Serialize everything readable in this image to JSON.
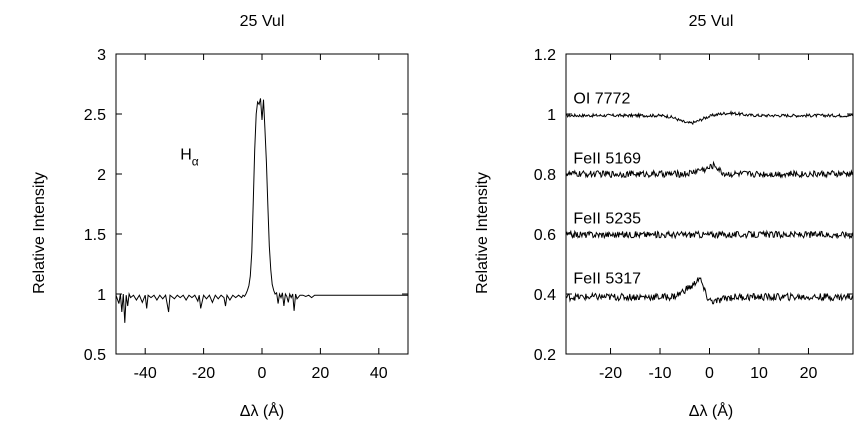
{
  "chart_data": [
    {
      "type": "line",
      "title": "25 Vul",
      "xlabel": "Δλ (Å)",
      "ylabel": "Relative Intensity",
      "xlim": [
        -50,
        50
      ],
      "ylim": [
        0.5,
        3
      ],
      "xticks": [
        "-40",
        "-20",
        "0",
        "20",
        "40"
      ],
      "xtick_values": [
        -40,
        -20,
        0,
        20,
        40
      ],
      "yticks": [
        "0.5",
        "1",
        "1.5",
        "2",
        "2.5",
        "3"
      ],
      "ytick_values": [
        0.5,
        1,
        1.5,
        2,
        2.5,
        3
      ],
      "grid": false,
      "annotations": [
        {
          "text": "H",
          "sub": "α",
          "x": -28,
          "y": 2.12
        }
      ],
      "series": [
        {
          "x": [
            -50,
            -49,
            -48.5,
            -48,
            -47.5,
            -47,
            -46.5,
            -46,
            -45.5,
            -45,
            -44,
            -43,
            -42,
            -41,
            -40,
            -39.5,
            -39,
            -38,
            -37,
            -36,
            -35,
            -34,
            -33,
            -32,
            -31.5,
            -31,
            -30,
            -29,
            -28,
            -27,
            -26,
            -25,
            -24,
            -23,
            -22,
            -21.5,
            -21,
            -20,
            -19,
            -18,
            -17,
            -16,
            -15,
            -14,
            -13,
            -12.5,
            -12,
            -11,
            -10,
            -9,
            -8,
            -7,
            -6.5,
            -6,
            -5.5,
            -5,
            -4.5,
            -4,
            -3.5,
            -3,
            -2.5,
            -2,
            -1.5,
            -1,
            -0.5,
            0,
            0.5,
            1,
            1.5,
            2,
            2.5,
            3,
            3.5,
            4,
            4.5,
            5,
            5.5,
            6,
            6.5,
            7,
            7.5,
            8,
            8.5,
            9,
            9.5,
            10,
            10.5,
            11,
            11.5,
            12,
            13,
            14,
            15,
            16,
            17,
            18,
            19,
            20,
            22,
            24,
            26,
            28,
            30,
            32,
            34,
            36,
            38,
            40,
            42,
            44,
            46,
            48,
            50
          ],
          "y": [
            0.99,
            0.92,
            1.0,
            0.85,
            1.0,
            0.76,
            0.99,
            0.9,
            1.0,
            0.97,
            0.99,
            0.95,
            0.99,
            0.93,
            0.99,
            0.88,
            0.99,
            0.97,
            0.99,
            0.95,
            0.99,
            0.96,
            0.99,
            0.85,
            0.99,
            0.98,
            0.96,
            0.99,
            0.97,
            0.99,
            0.95,
            0.99,
            0.97,
            0.99,
            0.94,
            0.99,
            0.88,
            0.99,
            0.96,
            0.99,
            0.93,
            0.99,
            0.96,
            0.99,
            0.97,
            0.9,
            0.99,
            0.95,
            0.99,
            0.97,
            0.99,
            0.97,
            0.99,
            0.98,
            1.0,
            1.03,
            1.07,
            1.15,
            1.35,
            1.75,
            2.2,
            2.5,
            2.6,
            2.58,
            2.63,
            2.45,
            2.62,
            2.38,
            2.1,
            1.75,
            1.4,
            1.2,
            1.08,
            1.03,
            1.0,
            1.01,
            0.92,
            1.0,
            0.97,
            1.01,
            0.9,
            1.0,
            0.98,
            0.93,
            1.0,
            0.97,
            1.0,
            0.86,
            1.0,
            0.96,
            0.99,
            0.99,
            0.98,
            0.99,
            0.97,
            0.99,
            0.99,
            0.99,
            0.99,
            0.99,
            0.99,
            0.99,
            0.99,
            0.99,
            0.99,
            0.99,
            0.99,
            0.99,
            0.99,
            0.99,
            0.99,
            0.99,
            0.99
          ]
        }
      ]
    },
    {
      "type": "line",
      "title": "25 Vul",
      "xlabel": "Δλ (Å)",
      "ylabel": "Relative Intensity",
      "xlim": [
        -29,
        29
      ],
      "ylim": [
        0.2,
        1.2
      ],
      "xticks": [
        "-20",
        "-10",
        "0",
        "10",
        "20"
      ],
      "xtick_values": [
        -20,
        -10,
        0,
        10,
        20
      ],
      "yticks": [
        "0.2",
        "0.4",
        "0.6",
        "0.8",
        "1",
        "1.2"
      ],
      "ytick_values": [
        0.2,
        0.4,
        0.6,
        0.8,
        1.0,
        1.2
      ],
      "grid": false,
      "series": [
        {
          "name": "OI 7772",
          "label_pos": {
            "x": -27.5,
            "y": 1.035
          },
          "base": 0.995,
          "noise": 0.005,
          "features": [
            [
              -4,
              -0.025,
              3
            ],
            [
              4,
              0.008,
              3
            ]
          ]
        },
        {
          "name": "FeII 5169",
          "label_pos": {
            "x": -27.5,
            "y": 0.835
          },
          "base": 0.8,
          "noise": 0.011,
          "features": [
            [
              -1.5,
              0.015,
              2
            ],
            [
              1,
              0.025,
              1.2
            ]
          ]
        },
        {
          "name": "FeII 5235",
          "label_pos": {
            "x": -27.5,
            "y": 0.635
          },
          "base": 0.598,
          "noise": 0.011,
          "features": []
        },
        {
          "name": "FeII 5317",
          "label_pos": {
            "x": -27.5,
            "y": 0.435
          },
          "base": 0.39,
          "noise": 0.012,
          "features": [
            [
              -4,
              0.03,
              2
            ],
            [
              -2,
              0.05,
              1.1
            ],
            [
              1,
              -0.015,
              2
            ]
          ]
        }
      ]
    }
  ]
}
